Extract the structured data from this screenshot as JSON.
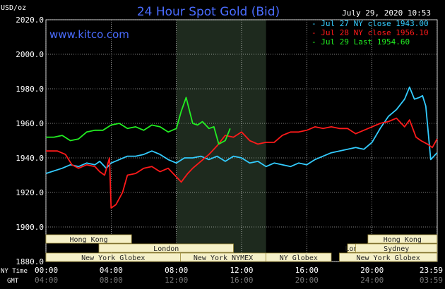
{
  "header": {
    "units": "USD/oz",
    "title": "24 Hour Spot Gold (Bid)",
    "timestamp": "July 29, 2020 10:53",
    "watermark": "www.kitco.com",
    "row_label_ny": "NY Time",
    "row_label_gmt": "GMT"
  },
  "colors": {
    "background": "#000000",
    "grid": "#ffffff",
    "title": "#4a6cff",
    "series_jul27": "#33ccff",
    "series_jul28": "#ff1a1a",
    "series_jul29": "#22ee22",
    "session_fill": "#f5f0c8",
    "session_border": "#a08f3c",
    "shade": "#1e2a1e"
  },
  "chart_data": {
    "type": "line",
    "ylim": [
      1880,
      2020
    ],
    "yticks": [
      "1880.0",
      "1900.0",
      "1920.0",
      "1940.0",
      "1960.0",
      "1980.0",
      "2000.0",
      "2020.0"
    ],
    "xlim": [
      0,
      24
    ],
    "xticks_ny": [
      "00:00",
      "04:00",
      "08:00",
      "12:00",
      "16:00",
      "20:00",
      "23:59"
    ],
    "xticks_gmt": [
      "04:00",
      "08:00",
      "12:00",
      "16:00",
      "20:00",
      "24:00",
      "03:59"
    ],
    "series": [
      {
        "name": "Jul 27 NY close 1943.00",
        "x": [
          0,
          1,
          1.5,
          2,
          2.5,
          3,
          3.3,
          3.7,
          4,
          4.5,
          5,
          5.5,
          6,
          6.5,
          7,
          7.5,
          8,
          8.5,
          9,
          9.5,
          10,
          10.5,
          11,
          11.5,
          12,
          12.5,
          13,
          13.5,
          14,
          14.5,
          15,
          15.5,
          16,
          16.5,
          17,
          17.5,
          18,
          18.5,
          19,
          19.5,
          20,
          20.5,
          21,
          21.5,
          22,
          22.3,
          22.6,
          22.9,
          23.1,
          23.3,
          23.6,
          23.99
        ],
        "values": [
          1931,
          1934,
          1936,
          1935,
          1937,
          1936,
          1938,
          1934,
          1937,
          1939,
          1941,
          1941,
          1942,
          1944,
          1942,
          1939,
          1937,
          1940,
          1940,
          1941,
          1939,
          1941,
          1938,
          1941,
          1940,
          1937,
          1938,
          1935,
          1937,
          1936,
          1935,
          1937,
          1936,
          1939,
          1941,
          1943,
          1944,
          1945,
          1946,
          1945,
          1949,
          1957,
          1964,
          1968,
          1974,
          1981,
          1974,
          1975,
          1976,
          1970,
          1939,
          1943
        ]
      },
      {
        "name": "Jul 28 NY close 1956.10",
        "x": [
          0,
          0.7,
          1.2,
          1.6,
          2,
          2.5,
          3,
          3.3,
          3.6,
          3.9,
          4,
          4.3,
          4.7,
          5,
          5.5,
          6,
          6.5,
          7,
          7.5,
          8,
          8.3,
          8.7,
          9,
          9.5,
          10,
          10.5,
          11,
          11.5,
          12,
          12.5,
          13,
          13.5,
          14,
          14.5,
          15,
          15.5,
          16,
          16.5,
          17,
          17.5,
          18,
          18.5,
          19,
          19.5,
          20,
          20.5,
          21,
          21.5,
          22,
          22.3,
          22.7,
          23,
          23.4,
          23.7,
          23.99
        ],
        "values": [
          1944,
          1944,
          1942,
          1936,
          1934,
          1936,
          1935,
          1932,
          1930,
          1940,
          1911,
          1913,
          1920,
          1930,
          1931,
          1934,
          1935,
          1932,
          1934,
          1929,
          1926,
          1931,
          1934,
          1938,
          1942,
          1947,
          1953,
          1952,
          1955,
          1950,
          1948,
          1949,
          1949,
          1953,
          1955,
          1955,
          1956,
          1958,
          1957,
          1958,
          1957,
          1957,
          1954,
          1956,
          1958,
          1960,
          1961,
          1963,
          1958,
          1962,
          1952,
          1950,
          1948,
          1946,
          1951
        ]
      },
      {
        "name": "Jul 29 Last 1954.60",
        "x": [
          0,
          0.5,
          1,
          1.5,
          2,
          2.5,
          3,
          3.5,
          4,
          4.5,
          5,
          5.5,
          6,
          6.5,
          7,
          7.5,
          8,
          8.3,
          8.6,
          9,
          9.3,
          9.6,
          10,
          10.3,
          10.6,
          11,
          11.3
        ],
        "values": [
          1952,
          1952,
          1953,
          1950,
          1951,
          1955,
          1956,
          1956,
          1959,
          1960,
          1957,
          1958,
          1956,
          1959,
          1958,
          1955,
          1957,
          1967,
          1975,
          1960,
          1959,
          1961,
          1957,
          1958,
          1948,
          1950,
          1957
        ]
      }
    ]
  },
  "sessions": [
    {
      "name": "Hong Kong",
      "start": 0,
      "end": 5.25,
      "row": 0
    },
    {
      "name": "London",
      "start": 3.25,
      "end": 11.5,
      "row": 1
    },
    {
      "name": "New York Globex",
      "start": 0,
      "end": 8.25,
      "row": 2
    },
    {
      "name": "New York NYMEX",
      "start": 8.25,
      "end": 13.5,
      "row": 2
    },
    {
      "name": "NY Globex",
      "start": 13.5,
      "end": 17.5,
      "row": 2
    },
    {
      "name": "Hong Kong",
      "start": 19.75,
      "end": 23.99,
      "row": 0
    },
    {
      "name": "London",
      "start": 18.5,
      "end": 19.75,
      "row": 1
    },
    {
      "name": "Sydney",
      "start": 19.0,
      "end": 23.99,
      "row": 1
    },
    {
      "name": "New York Globex",
      "start": 18.0,
      "end": 23.99,
      "row": 2
    }
  ],
  "shaded_period": [
    8.0,
    13.5
  ]
}
